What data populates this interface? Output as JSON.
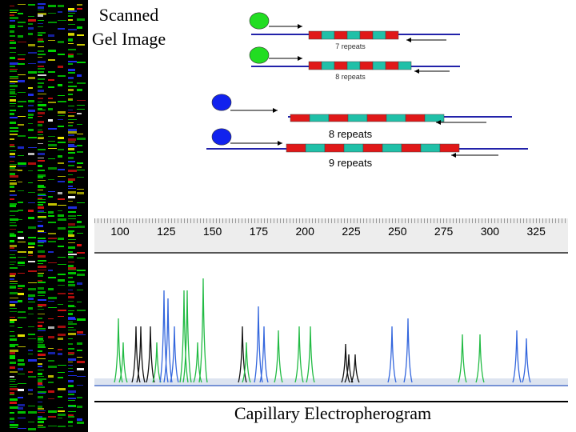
{
  "gel": {
    "title": "Scanned Gel Image",
    "lane_colors": [
      "#00dd00",
      "#dd1111",
      "#eeee00",
      "#2233ff",
      "#ffffff"
    ]
  },
  "schematic": {
    "colors": {
      "dye_green": "#22dd22",
      "dye_blue": "#1122ee",
      "repeat_red": "#e01818",
      "repeat_teal": "#20c0a8",
      "strand": "#2222aa"
    },
    "constructs": [
      {
        "label": "7 repeats",
        "dye": "green",
        "repeats": 7
      },
      {
        "label": "8 repeats",
        "dye": "green",
        "repeats": 8
      },
      {
        "label": "8 repeats",
        "dye": "blue",
        "repeats": 8
      },
      {
        "label": "9 repeats",
        "dye": "blue",
        "repeats": 9
      }
    ]
  },
  "electropherogram": {
    "title": "Capillary Electropherogram",
    "size_ticks": [
      "100",
      "125",
      "150",
      "175",
      "200",
      "225",
      "250",
      "275",
      "300",
      "325"
    ],
    "colors": {
      "green": "#22bb44",
      "blue": "#3366dd",
      "black": "#111111",
      "baseline": "#5577cc"
    }
  }
}
